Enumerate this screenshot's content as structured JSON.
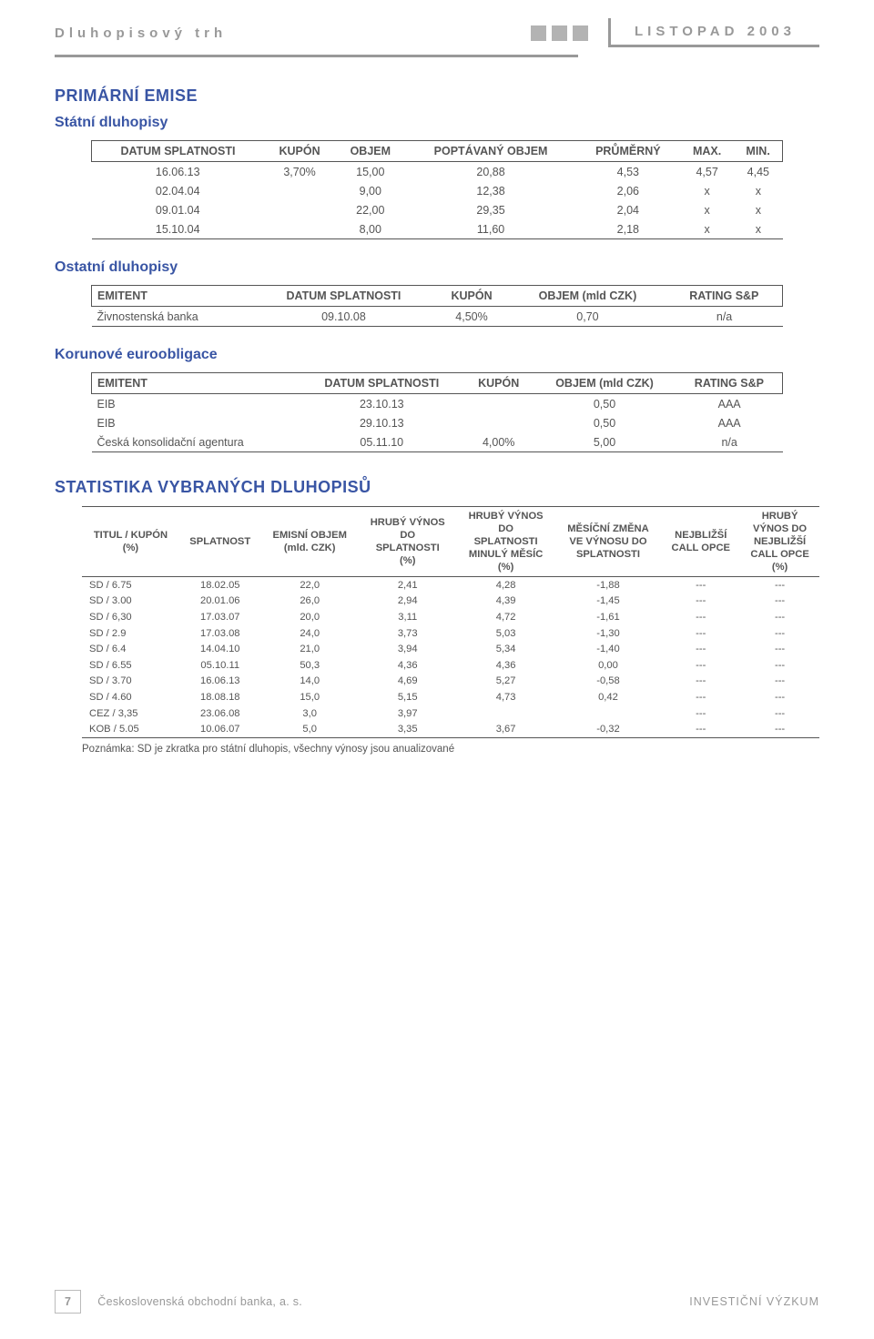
{
  "header": {
    "left": "Dluhopisový trh",
    "right": "LISTOPAD 2003"
  },
  "sections": {
    "primary": "PRIMÁRNÍ EMISE",
    "state_bonds": "Státní dluhopisy",
    "other_bonds": "Ostatní dluhopisy",
    "crown_euro": "Korunové euroobligace",
    "stats": "STATISTIKA VYBRANÝCH DLUHOPISŮ"
  },
  "state": {
    "columns": [
      "DATUM SPLATNOSTI",
      "KUPÓN",
      "OBJEM",
      "POPTÁVANÝ OBJEM",
      "PRŮMĚRNÝ",
      "MAX.",
      "MIN."
    ],
    "rows": [
      [
        "16.06.13",
        "3,70%",
        "15,00",
        "20,88",
        "4,53",
        "4,57",
        "4,45"
      ],
      [
        "02.04.04",
        "",
        "9,00",
        "12,38",
        "2,06",
        "x",
        "x"
      ],
      [
        "09.01.04",
        "",
        "22,00",
        "29,35",
        "2,04",
        "x",
        "x"
      ],
      [
        "15.10.04",
        "",
        "8,00",
        "11,60",
        "2,18",
        "x",
        "x"
      ]
    ]
  },
  "other": {
    "columns": [
      "EMITENT",
      "DATUM SPLATNOSTI",
      "KUPÓN",
      "OBJEM (mld CZK)",
      "RATING S&P"
    ],
    "rows": [
      [
        "Živnostenská banka",
        "09.10.08",
        "4,50%",
        "0,70",
        "n/a"
      ]
    ]
  },
  "euro": {
    "columns": [
      "EMITENT",
      "DATUM SPLATNOSTI",
      "KUPÓN",
      "OBJEM (mld CZK)",
      "RATING S&P"
    ],
    "rows": [
      [
        "EIB",
        "23.10.13",
        "",
        "0,50",
        "AAA"
      ],
      [
        "EIB",
        "29.10.13",
        "",
        "0,50",
        "AAA"
      ],
      [
        "Česká konsolidační agentura",
        "05.11.10",
        "4,00%",
        "5,00",
        "n/a"
      ]
    ]
  },
  "stats": {
    "columns": [
      "TITUL / KUPÓN (%)",
      "SPLATNOST",
      "EMISNÍ OBJEM (mld. CZK)",
      "HRUBÝ VÝNOS DO SPLATNOSTI (%)",
      "HRUBÝ VÝNOS DO SPLATNOSTI MINULÝ MĚSÍC (%)",
      "MĚSÍČNÍ ZMĚNA VE VÝNOSU DO SPLATNOSTI",
      "NEJBLIŽŠÍ CALL OPCE",
      "HRUBÝ VÝNOS DO NEJBLIŽŠÍ CALL OPCE (%)"
    ],
    "rows": [
      [
        "SD / 6.75",
        "18.02.05",
        "22,0",
        "2,41",
        "4,28",
        "-1,88",
        "---",
        "---"
      ],
      [
        "SD / 3.00",
        "20.01.06",
        "26,0",
        "2,94",
        "4,39",
        "-1,45",
        "---",
        "---"
      ],
      [
        "SD / 6,30",
        "17.03.07",
        "20,0",
        "3,11",
        "4,72",
        "-1,61",
        "---",
        "---"
      ],
      [
        "SD / 2.9",
        "17.03.08",
        "24,0",
        "3,73",
        "5,03",
        "-1,30",
        "---",
        "---"
      ],
      [
        "SD / 6.4",
        "14.04.10",
        "21,0",
        "3,94",
        "5,34",
        "-1,40",
        "---",
        "---"
      ],
      [
        "SD  / 6.55",
        "05.10.11",
        "50,3",
        "4,36",
        "4,36",
        "0,00",
        "---",
        "---"
      ],
      [
        "SD  / 3.70",
        "16.06.13",
        "14,0",
        "4,69",
        "5,27",
        "-0,58",
        "---",
        "---"
      ],
      [
        "SD / 4.60",
        "18.08.18",
        "15,0",
        "5,15",
        "4,73",
        "0,42",
        "---",
        "---"
      ],
      [
        "CEZ / 3,35",
        "23.06.08",
        "3,0",
        "3,97",
        "",
        "",
        "---",
        "---"
      ],
      [
        "KOB / 5.05",
        "10.06.07",
        "5,0",
        "3,35",
        "3,67",
        "-0,32",
        "---",
        "---"
      ]
    ],
    "note": "Poznámka: SD je zkratka pro státní dluhopis, všechny výnosy jsou anualizované"
  },
  "footer": {
    "page": "7",
    "company": "Československá obchodní banka, a. s.",
    "right": "INVESTIČNÍ VÝZKUM"
  }
}
